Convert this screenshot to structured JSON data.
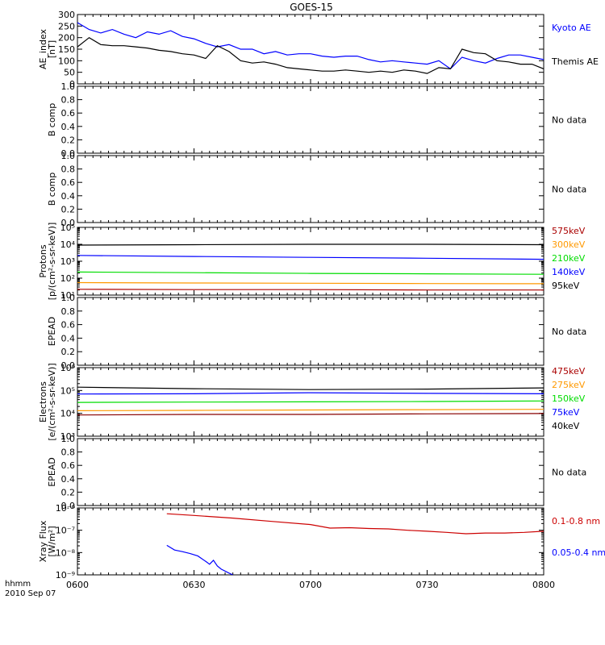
{
  "title": "GOES-15",
  "date_label": "hhmm",
  "date_value": "2010 Sep 07",
  "x_axis": {
    "range_minutes": [
      0,
      120
    ],
    "ticks": [
      "0600",
      "0630",
      "0700",
      "0730",
      "0800"
    ],
    "tick_minutes": [
      0,
      30,
      60,
      90,
      120
    ]
  },
  "colors": {
    "black": "#000000",
    "blue": "#0000ff",
    "red": "#cc0000",
    "orange": "#ff9900",
    "green": "#00dd00",
    "darkred": "#aa0000",
    "maroon": "#880000"
  },
  "chart_data": [
    {
      "type": "line",
      "ylabel": [
        "AE_index",
        "[nT]"
      ],
      "yscale": "linear",
      "ylim": [
        0,
        300
      ],
      "yticks": [
        "0",
        "50",
        "100",
        "150",
        "200",
        "250",
        "300"
      ],
      "ytick_values": [
        0,
        50,
        100,
        150,
        200,
        250,
        300
      ],
      "legend": [
        {
          "label": "Kyoto AE",
          "color": "#0000ff"
        },
        {
          "label": "Themis AE",
          "color": "#000000"
        }
      ],
      "series": [
        {
          "name": "Kyoto AE",
          "color": "#0000ff",
          "x": [
            0,
            3,
            6,
            9,
            12,
            15,
            18,
            21,
            24,
            27,
            30,
            33,
            36,
            39,
            42,
            45,
            48,
            51,
            54,
            57,
            60,
            63,
            66,
            69,
            72,
            75,
            78,
            81,
            84,
            87,
            90,
            93,
            96,
            99,
            102,
            105,
            108,
            111,
            114,
            117,
            120
          ],
          "y": [
            265,
            235,
            220,
            235,
            215,
            200,
            225,
            215,
            230,
            205,
            195,
            175,
            160,
            170,
            150,
            150,
            130,
            140,
            125,
            130,
            130,
            120,
            115,
            120,
            120,
            105,
            95,
            100,
            95,
            90,
            85,
            100,
            65,
            115,
            100,
            90,
            110,
            125,
            125,
            115,
            105
          ]
        },
        {
          "name": "Themis AE",
          "color": "#000000",
          "x": [
            0,
            3,
            6,
            9,
            12,
            15,
            18,
            21,
            24,
            27,
            30,
            33,
            36,
            39,
            42,
            45,
            48,
            51,
            54,
            57,
            60,
            63,
            66,
            69,
            72,
            75,
            78,
            81,
            84,
            87,
            90,
            93,
            96,
            99,
            102,
            105,
            108,
            111,
            114,
            117,
            120
          ],
          "y": [
            160,
            200,
            170,
            165,
            165,
            160,
            155,
            145,
            140,
            130,
            125,
            110,
            165,
            140,
            100,
            90,
            95,
            85,
            70,
            65,
            60,
            55,
            55,
            60,
            55,
            50,
            55,
            50,
            60,
            55,
            45,
            70,
            65,
            150,
            135,
            130,
            100,
            95,
            85,
            85,
            65
          ]
        }
      ]
    },
    {
      "type": "line",
      "ylabel": [
        "B comp"
      ],
      "yscale": "linear",
      "ylim": [
        0,
        1
      ],
      "yticks": [
        "0.0",
        "0.2",
        "0.4",
        "0.6",
        "0.8",
        "1.0"
      ],
      "ytick_values": [
        0,
        0.2,
        0.4,
        0.6,
        0.8,
        1.0
      ],
      "legend": [
        {
          "label": "No data",
          "color": "#000000"
        }
      ],
      "series": []
    },
    {
      "type": "line",
      "ylabel": [
        "B comp"
      ],
      "yscale": "linear",
      "ylim": [
        0,
        1
      ],
      "yticks": [
        "0.0",
        "0.2",
        "0.4",
        "0.6",
        "0.8",
        "1.0"
      ],
      "ytick_values": [
        0,
        0.2,
        0.4,
        0.6,
        0.8,
        1.0
      ],
      "legend": [
        {
          "label": "No data",
          "color": "#000000"
        }
      ],
      "series": []
    },
    {
      "type": "line",
      "ylabel": [
        "Protons",
        "[p/(cm²-s-sr-keV)]"
      ],
      "yscale": "log",
      "ylim": [
        10,
        100000
      ],
      "yticks": [
        "10¹",
        "10²",
        "10³",
        "10⁴",
        "10⁵"
      ],
      "ytick_values": [
        10,
        100,
        1000,
        10000,
        100000
      ],
      "legend": [
        {
          "label": "575keV",
          "color": "#aa0000"
        },
        {
          "label": "300keV",
          "color": "#ff9900"
        },
        {
          "label": "210keV",
          "color": "#00dd00"
        },
        {
          "label": "140keV",
          "color": "#0000ff"
        },
        {
          "label": "95keV",
          "color": "#000000"
        }
      ],
      "series": [
        {
          "name": "95keV",
          "color": "#000000",
          "x": [
            0,
            30,
            60,
            90,
            120
          ],
          "y": [
            9000,
            9500,
            10000,
            10000,
            9500
          ]
        },
        {
          "name": "140keV",
          "color": "#0000ff",
          "x": [
            0,
            30,
            60,
            90,
            120
          ],
          "y": [
            2200,
            1900,
            1700,
            1500,
            1300
          ]
        },
        {
          "name": "210keV",
          "color": "#00dd00",
          "x": [
            0,
            30,
            60,
            90,
            120
          ],
          "y": [
            230,
            210,
            190,
            180,
            170
          ]
        },
        {
          "name": "300keV",
          "color": "#ff9900",
          "x": [
            0,
            30,
            60,
            90,
            120
          ],
          "y": [
            55,
            52,
            50,
            48,
            47
          ]
        },
        {
          "name": "575keV",
          "color": "#aa0000",
          "x": [
            0,
            30,
            60,
            90,
            120
          ],
          "y": [
            22,
            21,
            21,
            20,
            20
          ]
        }
      ]
    },
    {
      "type": "line",
      "ylabel": [
        "EPEAD"
      ],
      "yscale": "linear",
      "ylim": [
        0,
        1
      ],
      "yticks": [
        "0.0",
        "0.2",
        "0.4",
        "0.6",
        "0.8",
        "1.0"
      ],
      "ytick_values": [
        0,
        0.2,
        0.4,
        0.6,
        0.8,
        1.0
      ],
      "legend": [
        {
          "label": "No data",
          "color": "#000000"
        }
      ],
      "series": []
    },
    {
      "type": "line",
      "ylabel": [
        "Electrons",
        "[e/(cm²-s-sr-keV)]"
      ],
      "yscale": "log",
      "ylim": [
        1000,
        1000000
      ],
      "yticks": [
        "10³",
        "10⁴",
        "10⁵",
        "10⁶"
      ],
      "ytick_values": [
        1000,
        10000,
        100000,
        1000000
      ],
      "legend": [
        {
          "label": "475keV",
          "color": "#aa0000"
        },
        {
          "label": "275keV",
          "color": "#ff9900"
        },
        {
          "label": "150keV",
          "color": "#00dd00"
        },
        {
          "label": "75keV",
          "color": "#0000ff"
        },
        {
          "label": "40keV",
          "color": "#000000"
        }
      ],
      "series": [
        {
          "name": "40keV",
          "color": "#000000",
          "x": [
            0,
            30,
            60,
            90,
            120
          ],
          "y": [
            140000,
            120000,
            110000,
            115000,
            130000
          ]
        },
        {
          "name": "75keV",
          "color": "#0000ff",
          "x": [
            0,
            30,
            60,
            90,
            120
          ],
          "y": [
            70000,
            72000,
            80000,
            75000,
            72000
          ]
        },
        {
          "name": "150keV",
          "color": "#00dd00",
          "x": [
            0,
            30,
            60,
            90,
            120
          ],
          "y": [
            30000,
            31000,
            32000,
            33000,
            35000
          ]
        },
        {
          "name": "275keV",
          "color": "#ff9900",
          "x": [
            0,
            30,
            60,
            90,
            120
          ],
          "y": [
            13000,
            13500,
            14000,
            14500,
            15000
          ]
        },
        {
          "name": "475keV",
          "color": "#880000",
          "x": [
            0,
            30,
            60,
            90,
            120
          ],
          "y": [
            8500,
            9000,
            9000,
            9500,
            9800
          ]
        }
      ]
    },
    {
      "type": "line",
      "ylabel": [
        "EPEAD"
      ],
      "yscale": "linear",
      "ylim": [
        0,
        1
      ],
      "yticks": [
        "0.0",
        "0.2",
        "0.4",
        "0.6",
        "0.8",
        "1.0"
      ],
      "ytick_values": [
        0,
        0.2,
        0.4,
        0.6,
        0.8,
        1.0
      ],
      "legend": [
        {
          "label": "No data",
          "color": "#000000"
        }
      ],
      "series": []
    },
    {
      "type": "line",
      "ylabel": [
        "Xray Flux",
        "[W/m²]"
      ],
      "yscale": "log",
      "ylim": [
        1e-09,
        1e-06
      ],
      "yticks": [
        "10⁻⁹",
        "10⁻⁸",
        "10⁻⁷",
        "10⁻⁶"
      ],
      "ytick_values": [
        1e-09,
        1e-08,
        1e-07,
        1e-06
      ],
      "legend": [
        {
          "label": "0.1-0.8 nm",
          "color": "#cc0000"
        },
        {
          "label": "0.05-0.4 nm",
          "color": "#0000ff"
        }
      ],
      "series": [
        {
          "name": "0.1-0.8 nm",
          "color": "#cc0000",
          "x": [
            23,
            30,
            40,
            50,
            60,
            65,
            70,
            75,
            80,
            85,
            90,
            95,
            100,
            105,
            110,
            115,
            120
          ],
          "y": [
            5.5e-07,
            4.6e-07,
            3.5e-07,
            2.5e-07,
            1.8e-07,
            1.25e-07,
            1.3e-07,
            1.2e-07,
            1.15e-07,
            1e-07,
            9e-08,
            8e-08,
            7e-08,
            7.5e-08,
            7.5e-08,
            8e-08,
            9e-08
          ]
        },
        {
          "name": "0.05-0.4 nm",
          "color": "#0000ff",
          "x": [
            23,
            25,
            27,
            29,
            31,
            33,
            34,
            35,
            36,
            37,
            39,
            40
          ],
          "y": [
            2.1e-08,
            1.3e-08,
            1.1e-08,
            9e-09,
            7e-09,
            4e-09,
            3e-09,
            4.5e-09,
            2.5e-09,
            1.8e-09,
            1.2e-09,
            1e-09
          ]
        }
      ]
    }
  ]
}
